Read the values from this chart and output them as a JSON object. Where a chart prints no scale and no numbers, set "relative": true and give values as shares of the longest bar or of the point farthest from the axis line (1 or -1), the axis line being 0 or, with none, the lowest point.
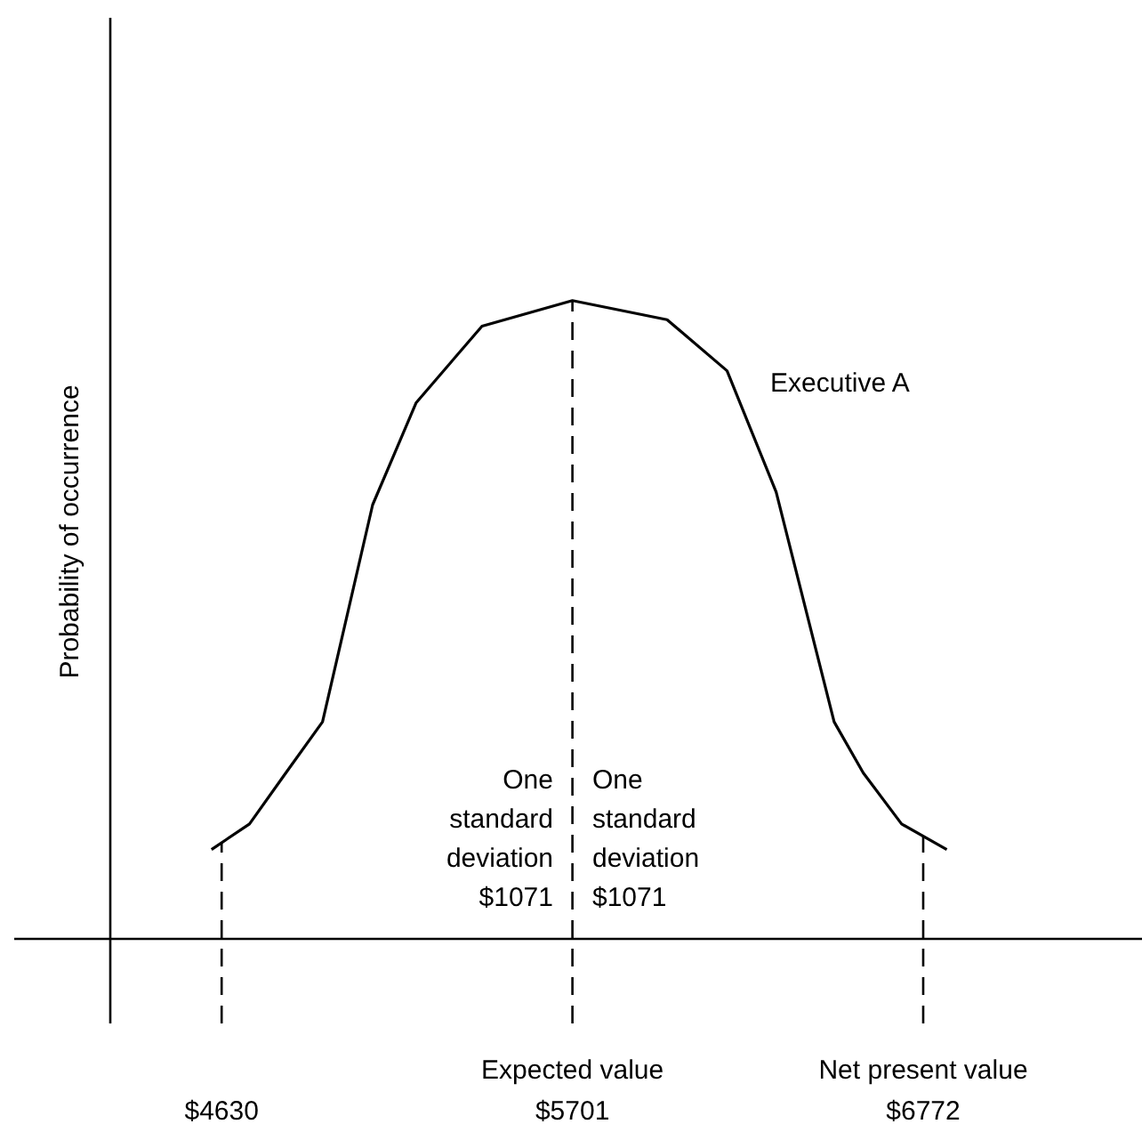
{
  "chart_data": {
    "type": "line",
    "relative": true,
    "ylabel": "Probability of occurrence",
    "xlim": [
      4290,
      7440
    ],
    "xticks": [
      {
        "value": 4630,
        "label": "$4630"
      },
      {
        "value": 5701,
        "label": "$5701"
      },
      {
        "value": 6772,
        "label": "$6772"
      }
    ],
    "marker": "none",
    "line_style": "solid",
    "legend": false,
    "series": [
      {
        "color": "#000000",
        "x": [
          4599,
          4715,
          4826,
          4938,
          5091,
          5224,
          5425,
          5701,
          5990,
          6173,
          6323,
          6500,
          6589,
          6706,
          6844
        ],
        "values": [
          0.14,
          0.18,
          0.26,
          0.34,
          0.68,
          0.84,
          0.96,
          1,
          0.97,
          0.89,
          0.7,
          0.34,
          0.26,
          0.18,
          0.14
        ]
      }
    ],
    "ref_lines": [
      {
        "axis": "x",
        "value": 4630,
        "line_style": "dashed"
      },
      {
        "axis": "x",
        "value": 5701,
        "line_style": "dashed"
      },
      {
        "axis": "x",
        "value": 6772,
        "line_style": "dashed"
      }
    ],
    "annotations": [
      "Executive A",
      "One\nstandard\ndeviation\n$1071",
      "One\nstandard\ndeviation\n$1071",
      "Expected value",
      "Net present value"
    ]
  }
}
